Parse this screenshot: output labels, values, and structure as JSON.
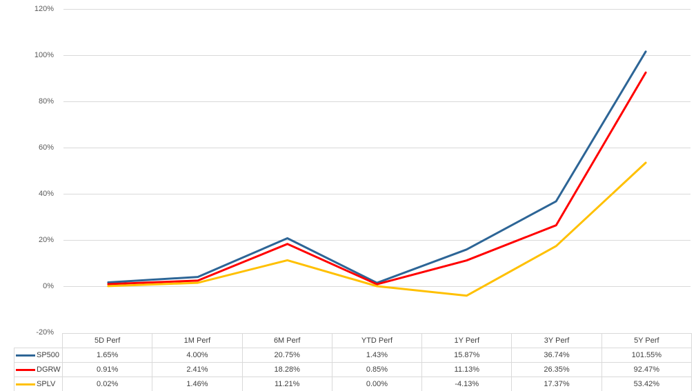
{
  "chart_data": {
    "type": "line",
    "title": "",
    "xlabel": "",
    "ylabel": "",
    "categories": [
      "5D Perf",
      "1M Perf",
      "6M Perf",
      "YTD Perf",
      "1Y Perf",
      "3Y Perf",
      "5Y Perf"
    ],
    "series": [
      {
        "name": "SP500",
        "color": "#2D6596",
        "values": [
          1.65,
          4.0,
          20.75,
          1.43,
          15.87,
          36.74,
          101.55
        ],
        "labels": [
          "1.65%",
          "4.00%",
          "20.75%",
          "1.43%",
          "15.87%",
          "36.74%",
          "101.55%"
        ]
      },
      {
        "name": "DGRW",
        "color": "#FF0000",
        "values": [
          0.91,
          2.41,
          18.28,
          0.85,
          11.13,
          26.35,
          92.47
        ],
        "labels": [
          "0.91%",
          "2.41%",
          "18.28%",
          "0.85%",
          "11.13%",
          "26.35%",
          "92.47%"
        ]
      },
      {
        "name": "SPLV",
        "color": "#FFC000",
        "values": [
          0.02,
          1.46,
          11.21,
          0.0,
          -4.13,
          17.37,
          53.42
        ],
        "labels": [
          "0.02%",
          "1.46%",
          "11.21%",
          "0.00%",
          "-4.13%",
          "17.37%",
          "53.42%"
        ]
      }
    ],
    "ylim": [
      -20,
      120
    ],
    "ytick_step": 20,
    "y_tick_labels": [
      "120%",
      "100%",
      "80%",
      "60%",
      "40%",
      "20%",
      "0%",
      "-20%"
    ],
    "grid": true,
    "legend_position": "table-left-column"
  },
  "colors": {
    "background": "#FFFFFF",
    "gridline": "#D9D9D9",
    "axis_text": "#595959",
    "table_text": "#404040",
    "table_border": "#D9D9D9"
  }
}
